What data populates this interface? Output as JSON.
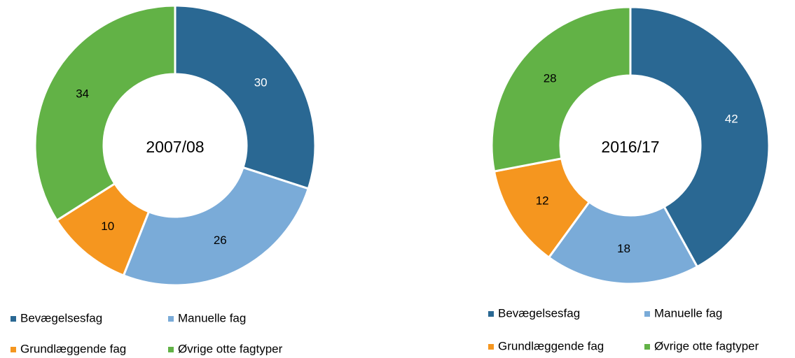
{
  "chart_data": [
    {
      "type": "pie",
      "title": "2007/08",
      "categories": [
        "Bevægelsesfag",
        "Manuelle fag",
        "Grundlæggende fag",
        "Øvrige otte fagtyper"
      ],
      "values": [
        30,
        26,
        10,
        34
      ],
      "colors": [
        "#2a6893",
        "#7aabd8",
        "#f5961f",
        "#62b246"
      ]
    },
    {
      "type": "pie",
      "title": "2016/17",
      "categories": [
        "Bevægelsesfag",
        "Manuelle fag",
        "Grundlæggende fag",
        "Øvrige otte fagtyper"
      ],
      "values": [
        42,
        18,
        12,
        28
      ],
      "colors": [
        "#2a6893",
        "#7aabd8",
        "#f5961f",
        "#62b246"
      ]
    }
  ]
}
